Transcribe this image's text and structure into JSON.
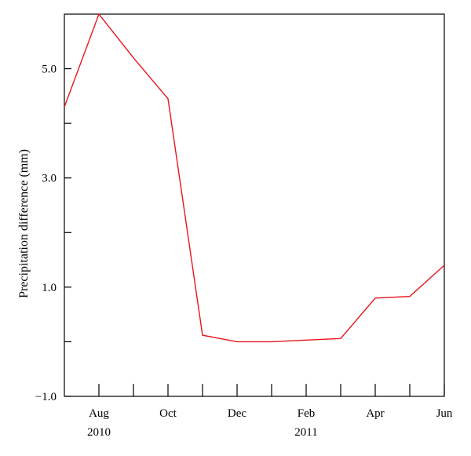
{
  "chart_data": {
    "type": "line",
    "title": "",
    "xlabel": "",
    "ylabel": "Precipitation difference (mm)",
    "ylim": [
      -1.0,
      6.0
    ],
    "y_ticks": [
      -1.0,
      0.0,
      1.0,
      2.0,
      3.0,
      4.0,
      5.0
    ],
    "y_tick_labels": [
      "−1.0",
      "",
      "1.0",
      "",
      "3.0",
      "",
      "5.0"
    ],
    "x_range": [
      "Jul 2010",
      "Jun 2011"
    ],
    "x_ticks": [
      "Aug 2010",
      "Sep 2010",
      "Oct 2010",
      "Nov 2010",
      "Dec 2010",
      "Jan 2011",
      "Feb 2011",
      "Mar 2011",
      "Apr 2011",
      "May 2011",
      "Jun 2011"
    ],
    "x_tick_labels": [
      "Aug",
      "",
      "Oct",
      "",
      "Dec",
      "",
      "Feb",
      "",
      "Apr",
      "",
      "Jun"
    ],
    "x_year_labels": [
      {
        "label": "2010",
        "month": "Aug 2010"
      },
      {
        "label": "2011",
        "month": "Feb 2011"
      }
    ],
    "grid": false,
    "series": [
      {
        "color": "#e8141c",
        "x": [
          "Jul 2010",
          "Aug 2010",
          "Sep 2010",
          "Oct 2010",
          "Nov 2010",
          "Dec 2010",
          "Jan 2011",
          "Feb 2011",
          "Mar 2011",
          "Apr 2011",
          "May 2011",
          "Jun 2011"
        ],
        "values": [
          4.3,
          6.0,
          5.2,
          4.45,
          0.12,
          0.0,
          0.0,
          0.03,
          0.06,
          0.8,
          0.83,
          1.4
        ]
      }
    ]
  }
}
